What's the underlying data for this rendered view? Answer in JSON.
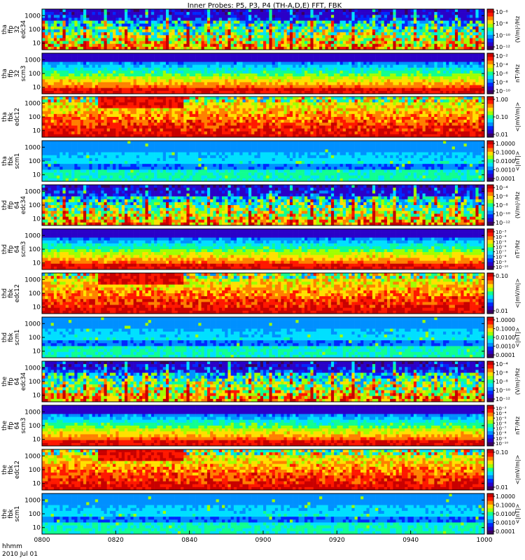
{
  "chart_data": {
    "type": "heatmap",
    "title": "Inner Probes: P5, P3, P4 (TH-A,D,E) FFT, FBK",
    "x_axis": {
      "tick_labels": [
        "0800",
        "0820",
        "0840",
        "0900",
        "0920",
        "0940",
        "1000"
      ],
      "xlim": [
        "0800",
        "1000"
      ],
      "footer_label_1": "hhmm",
      "footer_label_2": "2010 Jul 01"
    },
    "panels": [
      {
        "name": "tha-ffp32-edc34",
        "label_lines": [
          "tha",
          "ffp",
          "32",
          "edc34"
        ],
        "ylog": true,
        "yticks": [
          "1000",
          "100",
          "10"
        ],
        "colorbar_ticks": [
          "10⁻⁶",
          "10⁻⁸",
          "10⁻¹⁰",
          "10⁻¹²"
        ],
        "colorbar_label": "(V/m)²/Hz",
        "pattern": "broadband"
      },
      {
        "name": "tha-ffp32-scm3",
        "label_lines": [
          "tha",
          "ffp",
          "32",
          "scm3"
        ],
        "ylog": true,
        "yticks": [
          "1000",
          "100",
          "10"
        ],
        "colorbar_ticks": [
          "10⁻²",
          "10⁻⁴",
          "10⁻⁶",
          "10⁻⁸",
          "10⁻¹⁰"
        ],
        "colorbar_label": "nT²/Hz",
        "pattern": "scm"
      },
      {
        "name": "tha-fbk-edc12",
        "label_lines": [
          "tha",
          "fbk",
          "edc12"
        ],
        "ylog": true,
        "yticks": [
          "1000",
          "100",
          "10"
        ],
        "colorbar_ticks": [
          "1.00",
          "0.10",
          "0.01"
        ],
        "colorbar_label": "<|mV/m|>",
        "pattern": "fbk_e"
      },
      {
        "name": "tha-fbk-scm1",
        "label_lines": [
          "tha",
          "fbk",
          "scm1"
        ],
        "ylog": true,
        "yticks": [
          "1000",
          "100",
          "10"
        ],
        "colorbar_ticks": [
          "1.0000",
          "0.1000",
          "0.0100",
          "0.0010",
          "0.0001"
        ],
        "colorbar_label": "<|nT|>",
        "pattern": "fbk_b"
      },
      {
        "name": "thd-ffp64-edc34",
        "label_lines": [
          "thd",
          "ffp",
          "64",
          "edc34"
        ],
        "ylog": true,
        "yticks": [
          "1000",
          "100",
          "10"
        ],
        "colorbar_ticks": [
          "10⁻⁴",
          "10⁻⁶",
          "10⁻⁸",
          "10⁻¹⁰",
          "10⁻¹²"
        ],
        "colorbar_label": "(V/m)²/Hz",
        "pattern": "broadband"
      },
      {
        "name": "thd-ffp64-scm3",
        "label_lines": [
          "thd",
          "ffp",
          "64",
          "scm3"
        ],
        "ylog": true,
        "yticks": [
          "1000",
          "100",
          "10"
        ],
        "colorbar_ticks": [
          "10⁻³",
          "10⁻⁴",
          "10⁻⁵",
          "10⁻⁶",
          "10⁻⁷",
          "10⁻⁸",
          "10⁻⁹",
          "10⁻¹⁰"
        ],
        "colorbar_label": "nT²/Hz",
        "pattern": "scm"
      },
      {
        "name": "thd-fbk-edc12",
        "label_lines": [
          "thd",
          "fbk",
          "edc12"
        ],
        "ylog": true,
        "yticks": [
          "1000",
          "100",
          "10"
        ],
        "colorbar_ticks": [
          "0.10",
          "0.01"
        ],
        "colorbar_label": "<|mV/m|>",
        "pattern": "fbk_e"
      },
      {
        "name": "thd-fbk-scm1",
        "label_lines": [
          "thd",
          "fbk",
          "scm1"
        ],
        "ylog": true,
        "yticks": [
          "1000",
          "100",
          "10"
        ],
        "colorbar_ticks": [
          "1.0000",
          "0.1000",
          "0.0100",
          "0.0010",
          "0.0001"
        ],
        "colorbar_label": "<|nT|>",
        "pattern": "fbk_b"
      },
      {
        "name": "the-ffp64-edc34",
        "label_lines": [
          "the",
          "ffp",
          "64",
          "edc34"
        ],
        "ylog": true,
        "yticks": [
          "1000",
          "100",
          "10"
        ],
        "colorbar_ticks": [
          "10⁻⁴",
          "10⁻⁶",
          "10⁻⁸",
          "10⁻¹⁰",
          "10⁻¹²"
        ],
        "colorbar_label": "(V/m)²/Hz",
        "pattern": "broadband"
      },
      {
        "name": "the-ffp64-scm3",
        "label_lines": [
          "the",
          "ffp",
          "64",
          "scm3"
        ],
        "ylog": true,
        "yticks": [
          "1000",
          "100",
          "10"
        ],
        "colorbar_ticks": [
          "10⁻³",
          "10⁻⁴",
          "10⁻⁵",
          "10⁻⁶",
          "10⁻⁷",
          "10⁻⁸",
          "10⁻⁹",
          "10⁻¹⁰"
        ],
        "colorbar_label": "nT²/Hz",
        "pattern": "scm"
      },
      {
        "name": "the-fbk-edc12",
        "label_lines": [
          "the",
          "fbk",
          "edc12"
        ],
        "ylog": true,
        "yticks": [
          "1000",
          "100",
          "10"
        ],
        "colorbar_ticks": [
          "0.10",
          "0.01"
        ],
        "colorbar_label": "<|mV/m|>",
        "pattern": "fbk_e"
      },
      {
        "name": "the-fbk-scm1",
        "label_lines": [
          "the",
          "fbk",
          "scm1"
        ],
        "ylog": true,
        "yticks": [
          "1000",
          "100",
          "10"
        ],
        "colorbar_ticks": [
          "1.0000",
          "0.1000",
          "0.0100",
          "0.0010",
          "0.0001"
        ],
        "colorbar_label": "<|nT|>",
        "pattern": "fbk_b"
      }
    ],
    "colormap": [
      "#3a0060",
      "#2a00c8",
      "#0028ff",
      "#0090ff",
      "#00e0ff",
      "#10ff90",
      "#a0ff00",
      "#ffe000",
      "#ff8000",
      "#ff1800",
      "#c80000"
    ]
  }
}
